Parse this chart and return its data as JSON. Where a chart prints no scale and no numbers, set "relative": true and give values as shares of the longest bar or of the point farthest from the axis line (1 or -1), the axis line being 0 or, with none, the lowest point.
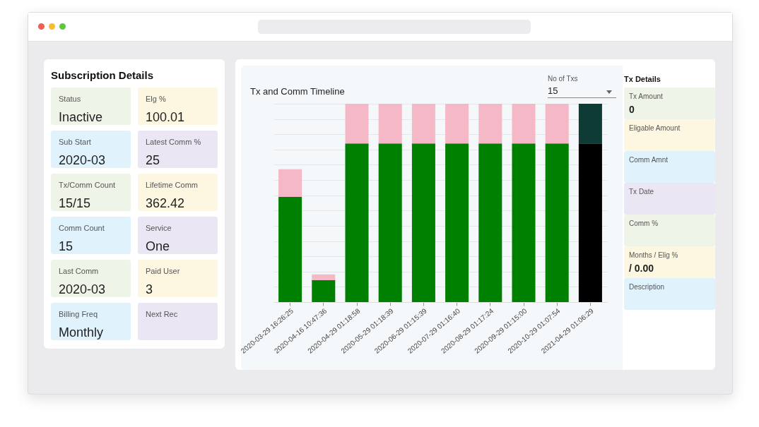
{
  "chart_data": [
    {
      "type": "other",
      "title": "Subscription Details",
      "categories": [
        "Status",
        "Elg %",
        "Sub Start",
        "Latest Comm %",
        "Tx/Comm Count",
        "Lifetime Comm",
        "Comm Count",
        "Service",
        "Last Comm",
        "Paid User",
        "Billing Freq",
        "Next Rec"
      ],
      "value_labels": [
        "Inactive",
        "100.01",
        "2020-03",
        "25",
        "15/15",
        "362.42",
        "15",
        "One",
        "2020-03",
        "3",
        "Monthly",
        null
      ],
      "colors": [
        "#eef5e8",
        "#fdf7e1",
        "#e0f2fc",
        "#ebe6f4",
        "#eef5e8",
        "#fdf7e1",
        "#e0f2fc",
        "#ebe6f4",
        "#eef5e8",
        "#fdf7e1",
        "#e0f2fc",
        "#ebe6f4"
      ]
    },
    {
      "type": "bar",
      "title": "Tx and Comm Timeline",
      "stacked": true,
      "relative": true,
      "grid": "y",
      "categories": [
        "2020-03-29 16:26:25",
        "2020-04-16 10:47:36",
        "2020-04-29 01:18:58",
        "2020-05-29 01:18:39",
        "2020-06-29 01:15:39",
        "2020-07-29 01:16:40",
        "2020-08-29 01:17:24",
        "2020-09-29 01:15:00",
        "2020-10-29 01:07:54",
        "2021-04-29 01:06:29"
      ],
      "series": [
        {
          "colors": [
            "#008000",
            "#008000",
            "#008000",
            "#008000",
            "#008000",
            "#008000",
            "#008000",
            "#008000",
            "#008000",
            "#000000"
          ],
          "values": [
            0.53,
            0.11,
            0.8,
            0.8,
            0.8,
            0.8,
            0.8,
            0.8,
            0.8,
            0.8
          ]
        },
        {
          "colors": [
            "#f5b8c6",
            "#f5b8c6",
            "#f5b8c6",
            "#f5b8c6",
            "#f5b8c6",
            "#f5b8c6",
            "#f5b8c6",
            "#f5b8c6",
            "#f5b8c6",
            "#0f3b37"
          ],
          "values": [
            0.14,
            0.03,
            0.2,
            0.2,
            0.2,
            0.2,
            0.2,
            0.2,
            0.2,
            0.2
          ]
        }
      ],
      "annotations": [
        "No of Txs",
        "15"
      ]
    },
    {
      "type": "other",
      "title": "Tx Details",
      "categories": [
        "Tx Amount",
        "Eligable Amount",
        "Comm Amnt",
        "Tx Date",
        "Comm %",
        "Months / Elig %",
        "Description"
      ],
      "value_labels": [
        "0",
        null,
        null,
        null,
        null,
        "/ 0.00",
        null
      ],
      "colors": [
        "#eef5e8",
        "#fdf7e1",
        "#e0f2fc",
        "#ebe6f4",
        "#eef5e8",
        "#fdf7e1",
        "#e0f2fc"
      ]
    }
  ]
}
